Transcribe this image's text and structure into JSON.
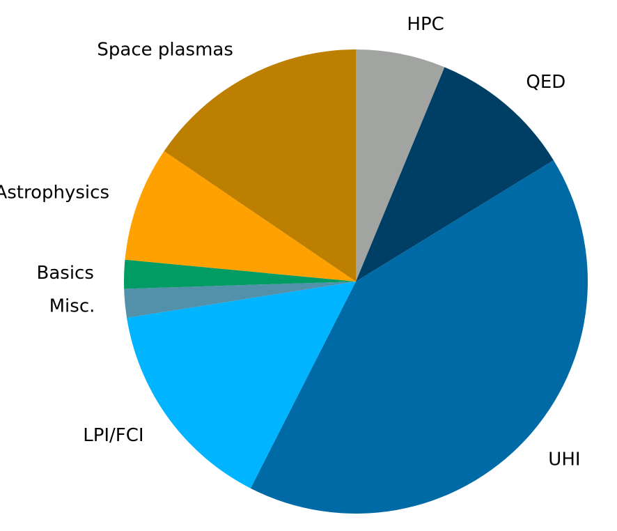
{
  "chart_data": {
    "type": "pie",
    "title": "",
    "start": "12 o'clock",
    "direction": "clockwise",
    "slices": [
      {
        "label": "HPC",
        "value": 6.25,
        "color": "#a2a4a1"
      },
      {
        "label": "QED",
        "value": 10.0,
        "color": "#003f65"
      },
      {
        "label": "UHI",
        "value": 41.25,
        "color": "#006aa6"
      },
      {
        "label": "LPI/FCI",
        "value": 15.0,
        "color": "#00b4ff"
      },
      {
        "label": "Misc.",
        "value": 2.0,
        "color": "#5391ab"
      },
      {
        "label": "Basics",
        "value": 2.0,
        "color": "#009c63"
      },
      {
        "label": "Astrophysics",
        "value": 8.0,
        "color": "#ffa100"
      },
      {
        "label": "Space plasmas",
        "value": 15.5,
        "color": "#bd7f00"
      }
    ]
  }
}
